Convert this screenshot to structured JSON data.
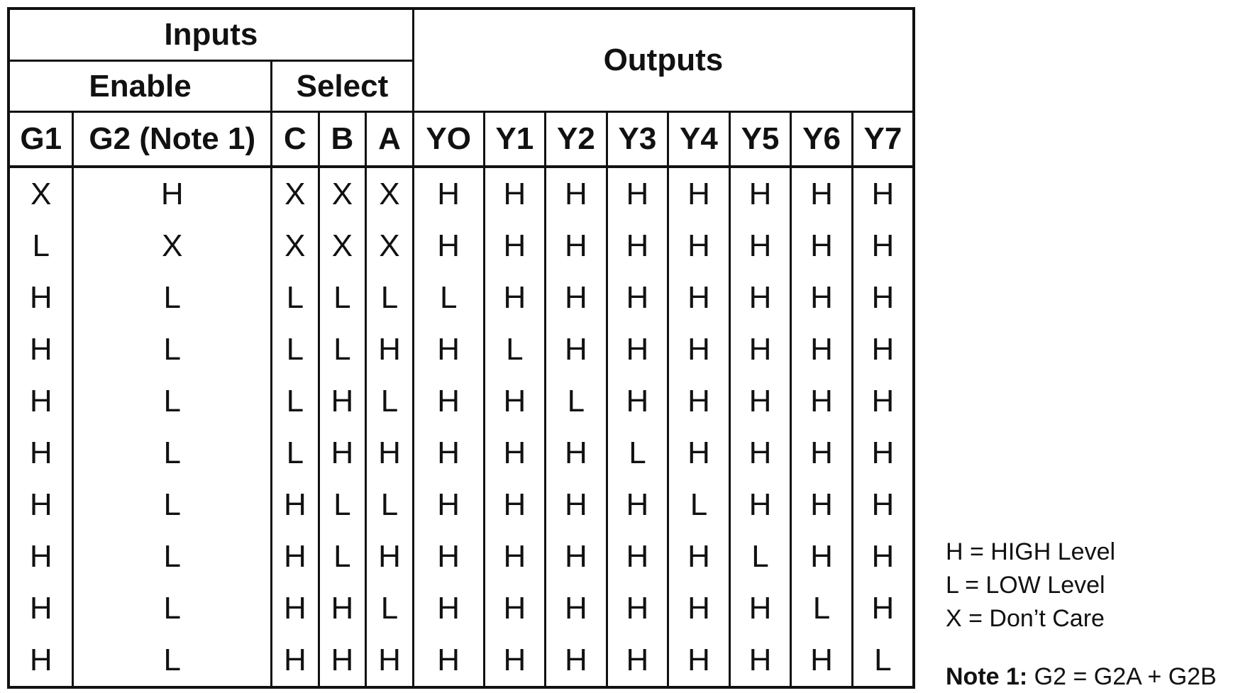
{
  "headers": {
    "inputs": "Inputs",
    "outputs": "Outputs",
    "enable": "Enable",
    "select": "Select"
  },
  "columns": [
    "G1",
    "G2 (Note 1)",
    "C",
    "B",
    "A",
    "YO",
    "Y1",
    "Y2",
    "Y3",
    "Y4",
    "Y5",
    "Y6",
    "Y7"
  ],
  "rows": [
    [
      "X",
      "H",
      "X",
      "X",
      "X",
      "H",
      "H",
      "H",
      "H",
      "H",
      "H",
      "H",
      "H"
    ],
    [
      "L",
      "X",
      "X",
      "X",
      "X",
      "H",
      "H",
      "H",
      "H",
      "H",
      "H",
      "H",
      "H"
    ],
    [
      "H",
      "L",
      "L",
      "L",
      "L",
      "L",
      "H",
      "H",
      "H",
      "H",
      "H",
      "H",
      "H"
    ],
    [
      "H",
      "L",
      "L",
      "L",
      "H",
      "H",
      "L",
      "H",
      "H",
      "H",
      "H",
      "H",
      "H"
    ],
    [
      "H",
      "L",
      "L",
      "H",
      "L",
      "H",
      "H",
      "L",
      "H",
      "H",
      "H",
      "H",
      "H"
    ],
    [
      "H",
      "L",
      "L",
      "H",
      "H",
      "H",
      "H",
      "H",
      "L",
      "H",
      "H",
      "H",
      "H"
    ],
    [
      "H",
      "L",
      "H",
      "L",
      "L",
      "H",
      "H",
      "H",
      "H",
      "L",
      "H",
      "H",
      "H"
    ],
    [
      "H",
      "L",
      "H",
      "L",
      "H",
      "H",
      "H",
      "H",
      "H",
      "H",
      "L",
      "H",
      "H"
    ],
    [
      "H",
      "L",
      "H",
      "H",
      "L",
      "H",
      "H",
      "H",
      "H",
      "H",
      "H",
      "L",
      "H"
    ],
    [
      "H",
      "L",
      "H",
      "H",
      "H",
      "H",
      "H",
      "H",
      "H",
      "H",
      "H",
      "H",
      "L"
    ]
  ],
  "legend": {
    "h": "H = HIGH Level",
    "l": "L = LOW Level",
    "x": "X = Don’t Care"
  },
  "note": {
    "label": "Note 1:",
    "text": " G2 = G2A + G2B"
  }
}
